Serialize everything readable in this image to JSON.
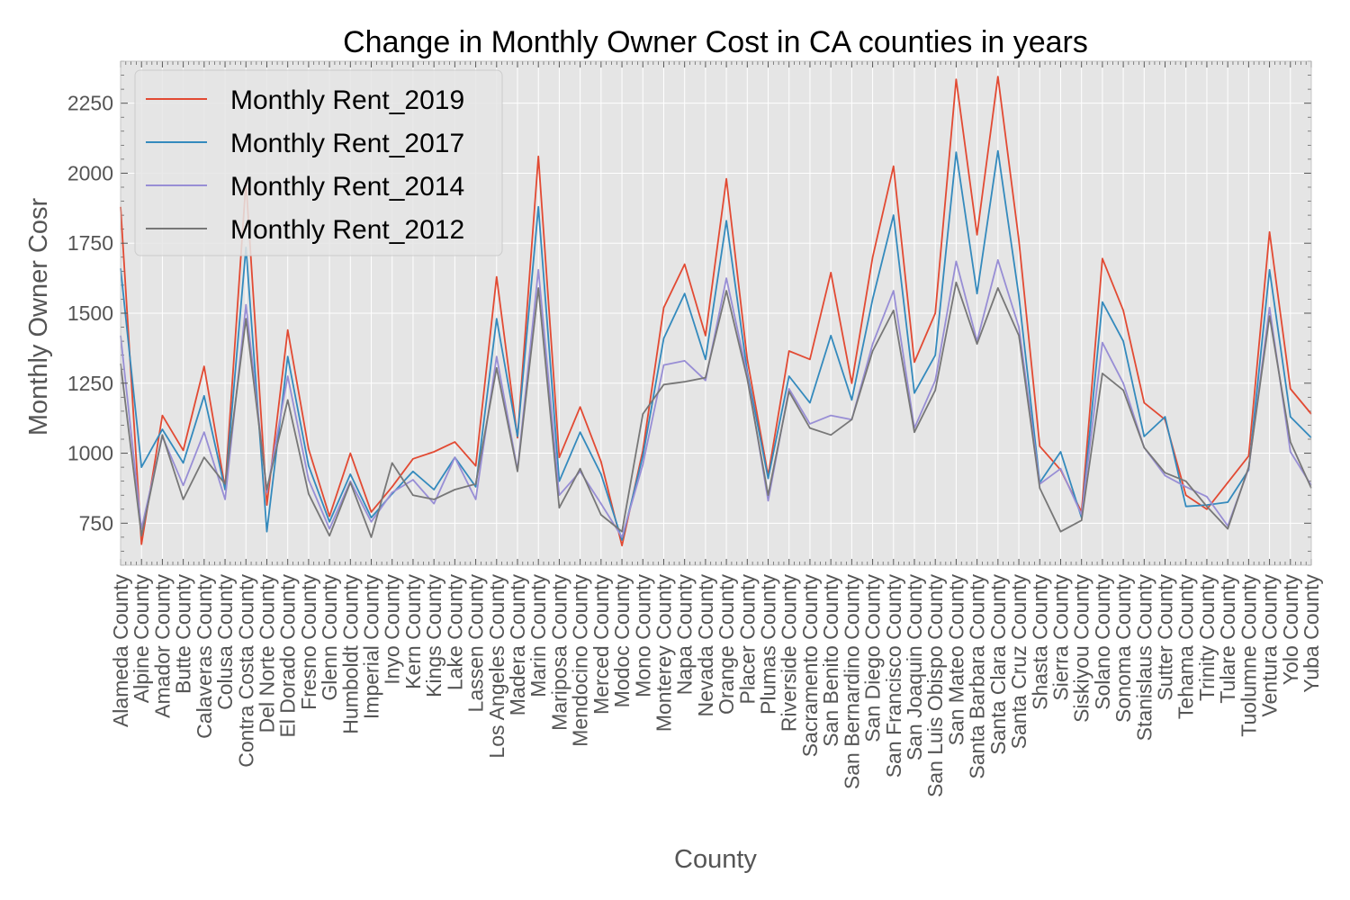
{
  "chart_data": {
    "type": "line",
    "title": "Change in Monthly Owner Cost in CA counties in years",
    "xlabel": "County",
    "ylabel": "Monthly Owner Cosr",
    "ylim": [
      600,
      2400
    ],
    "yticks": [
      750,
      1000,
      1250,
      1500,
      1750,
      2000,
      2250
    ],
    "grid": true,
    "legend_position": "top-left",
    "categories": [
      "Alameda County",
      "Alpine County",
      "Amador County",
      "Butte County",
      "Calaveras County",
      "Colusa County",
      "Contra Costa County",
      "Del Norte County",
      "El Dorado County",
      "Fresno County",
      "Glenn County",
      "Humboldt County",
      "Imperial County",
      "Inyo County",
      "Kern County",
      "Kings County",
      "Lake County",
      "Lassen County",
      "Los Angeles County",
      "Madera County",
      "Marin County",
      "Mariposa County",
      "Mendocino County",
      "Merced County",
      "Modoc County",
      "Mono County",
      "Monterey County",
      "Napa County",
      "Nevada County",
      "Orange County",
      "Placer County",
      "Plumas County",
      "Riverside County",
      "Sacramento County",
      "San Benito County",
      "San Bernardino County",
      "San Diego County",
      "San Francisco County",
      "San Joaquin County",
      "San Luis Obispo County",
      "San Mateo County",
      "Santa Barbara County",
      "Santa Clara County",
      "Santa Cruz County",
      "Shasta County",
      "Sierra County",
      "Siskiyou County",
      "Solano County",
      "Sonoma County",
      "Stanislaus County",
      "Sutter County",
      "Tehama County",
      "Trinity County",
      "Tulare County",
      "Tuolumne County",
      "Ventura County",
      "Yolo County",
      "Yuba County"
    ],
    "series": [
      {
        "name": "Monthly Rent_2019",
        "color": "#E24A33",
        "values": [
          1880,
          675,
          1135,
          1010,
          1310,
          875,
          1970,
          815,
          1440,
          1015,
          775,
          1000,
          790,
          880,
          980,
          1005,
          1040,
          955,
          1630,
          1055,
          2060,
          985,
          1165,
          970,
          670,
          1010,
          1520,
          1675,
          1420,
          1980,
          1335,
          920,
          1365,
          1335,
          1645,
          1250,
          1700,
          2025,
          1325,
          1500,
          2335,
          1780,
          2345,
          1760,
          1025,
          940,
          790,
          1695,
          1510,
          1180,
          1120,
          850,
          800,
          895,
          990,
          1790,
          1230,
          1140
        ]
      },
      {
        "name": "Monthly Rent_2017",
        "color": "#348ABD",
        "values": [
          1660,
          950,
          1085,
          965,
          1205,
          870,
          1735,
          720,
          1345,
          955,
          755,
          925,
          770,
          855,
          935,
          870,
          985,
          880,
          1480,
          1060,
          1880,
          900,
          1075,
          925,
          690,
          990,
          1410,
          1570,
          1335,
          1830,
          1290,
          910,
          1275,
          1180,
          1420,
          1190,
          1550,
          1850,
          1215,
          1350,
          2075,
          1570,
          2080,
          1560,
          895,
          1005,
          770,
          1540,
          1400,
          1060,
          1130,
          810,
          815,
          825,
          940,
          1655,
          1130,
          1055
        ]
      },
      {
        "name": "Monthly Rent_2014",
        "color": "#988ED5",
        "values": [
          1420,
          730,
          1060,
          885,
          1075,
          835,
          1530,
          860,
          1275,
          905,
          730,
          900,
          755,
          860,
          905,
          820,
          985,
          835,
          1345,
          940,
          1655,
          850,
          935,
          820,
          700,
          960,
          1315,
          1330,
          1260,
          1625,
          1280,
          830,
          1230,
          1105,
          1135,
          1120,
          1390,
          1580,
          1090,
          1260,
          1685,
          1400,
          1690,
          1450,
          890,
          945,
          780,
          1395,
          1250,
          1020,
          920,
          880,
          845,
          740,
          945,
          1520,
          1005,
          885
        ]
      },
      {
        "name": "Monthly Rent_2012",
        "color": "#777777",
        "values": [
          1320,
          705,
          1065,
          835,
          985,
          890,
          1480,
          870,
          1190,
          855,
          705,
          895,
          700,
          965,
          850,
          835,
          870,
          890,
          1305,
          935,
          1590,
          805,
          945,
          780,
          720,
          1140,
          1245,
          1255,
          1270,
          1580,
          1265,
          850,
          1220,
          1090,
          1065,
          1120,
          1365,
          1510,
          1075,
          1225,
          1610,
          1390,
          1590,
          1420,
          875,
          720,
          760,
          1285,
          1225,
          1020,
          930,
          900,
          810,
          730,
          950,
          1490,
          1040,
          875
        ]
      }
    ]
  }
}
